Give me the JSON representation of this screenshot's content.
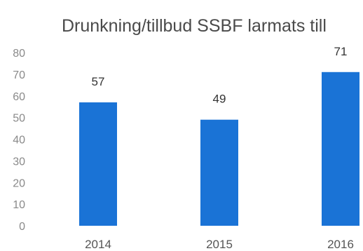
{
  "chart_data": {
    "type": "bar",
    "title": "Drunkning/tillbud SSBF larmats till",
    "categories": [
      "2014",
      "2015",
      "2016"
    ],
    "values": [
      57,
      49,
      71
    ],
    "data_labels": [
      "57",
      "49",
      "71"
    ],
    "ylim": [
      0,
      80
    ],
    "yticks": [
      0,
      10,
      20,
      30,
      40,
      50,
      60,
      70,
      80
    ],
    "xlabel": "",
    "ylabel": "",
    "grid": false,
    "legend": "none",
    "bar_color": "#1a73d6"
  }
}
